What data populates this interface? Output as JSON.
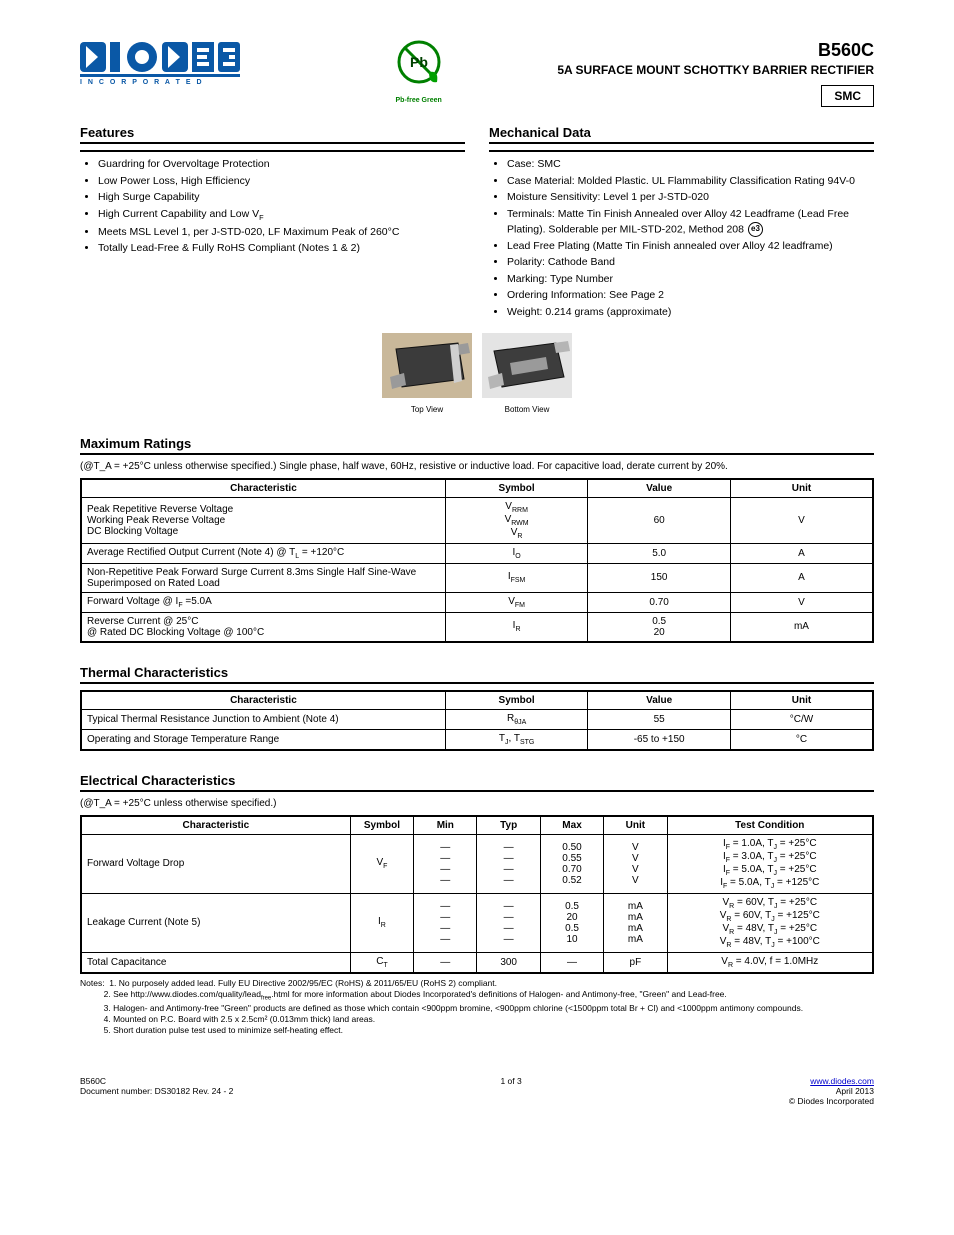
{
  "brand": {
    "name": "DIODES",
    "sub": "I N C O R P O R A T E D",
    "logo_fill": "#0a58a6",
    "logo_cut": "#a8cbe6"
  },
  "pbfree": {
    "caption": "Pb-free   Green"
  },
  "header": {
    "part": "B560C",
    "desc": "5A SURFACE MOUNT SCHOTTKY BARRIER RECTIFIER",
    "box": "SMC"
  },
  "features": {
    "title": "Features",
    "items": [
      "Guardring for Overvoltage Protection",
      "Low Power Loss, High Efficiency",
      "High Surge Capability",
      "High Current Capability and Low V_F",
      "Meets MSL Level 1, per J-STD-020, LF Maximum Peak of 260°C",
      "Totally Lead-Free & Fully RoHS Compliant (Notes 1 & 2)"
    ]
  },
  "mech": {
    "title": "Mechanical Data",
    "items": [
      "Case: SMC",
      "Case Material: Molded Plastic. UL Flammability Classification Rating 94V-0",
      "Moisture Sensitivity: Level 1 per J-STD-020",
      "Terminals: Matte Tin Finish Annealed over Alloy 42 Leadframe (Lead Free Plating). Solderable per MIL-STD-202, Method 208",
      "Lead Free Plating (Matte Tin Finish annealed over Alloy 42 leadframe)",
      "Polarity: Cathode Band",
      "Marking: Type Number",
      "Ordering Information: See Page 2",
      "Weight: 0.214 grams (approximate)"
    ],
    "e3_item_index": 3
  },
  "imgs": {
    "top_caption": "Top View",
    "bot_caption": "Bottom View"
  },
  "abs": {
    "title": "Maximum Ratings",
    "sub": "(@T_A = +25°C unless otherwise specified.)  Single phase, half wave, 60Hz, resistive or inductive load.  For capacitive load, derate current by 20%.",
    "cols": [
      "Characteristic",
      "Symbol",
      "Value",
      "Unit"
    ],
    "rows": [
      [
        "Peak Repetitive Reverse Voltage\nWorking Peak Reverse Voltage\nDC Blocking Voltage",
        "V_RRM\nV_RWM\nV_R",
        "60",
        "V"
      ],
      [
        "Average Rectified Output Current (Note 4)  @ T_L = +120°C",
        "I_O",
        "5.0",
        "A"
      ],
      [
        "Non-Repetitive Peak Forward Surge Current 8.3ms Single Half Sine-Wave Superimposed on Rated Load",
        "I_FSM",
        "150",
        "A"
      ],
      [
        "Forward Voltage   @ I_F =5.0A",
        "V_FM",
        "0.70",
        "V"
      ],
      [
        "Reverse Current  @ 25°C\n@ Rated DC Blocking Voltage  @ 100°C",
        "I_R",
        "0.5\n20",
        "mA"
      ]
    ]
  },
  "thermal": {
    "title": "Thermal Characteristics",
    "cols": [
      "Characteristic",
      "Symbol",
      "Value",
      "Unit"
    ],
    "rows": [
      [
        "Typical Thermal Resistance Junction to Ambient (Note 4)",
        "R_θJA",
        "55",
        "°C/W"
      ],
      [
        "Operating and Storage Temperature Range",
        "T_J, T_STG",
        "-65 to +150",
        "°C"
      ]
    ]
  },
  "elec": {
    "title": "Electrical Characteristics",
    "sub": "(@T_A = +25°C unless otherwise specified.)",
    "cols": [
      "Characteristic",
      "Symbol",
      "Min",
      "Typ",
      "Max",
      "Unit",
      "Test Condition"
    ],
    "rows": [
      [
        "Forward Voltage Drop",
        "V_F",
        "—\n—\n—\n—",
        "—\n—\n—\n—",
        "0.50\n0.55\n0.70\n0.52",
        "V\nV\nV\nV",
        "I_F = 1.0A, T_J = +25°C\nI_F = 3.0A, T_J = +25°C\nI_F = 5.0A, T_J = +25°C\nI_F = 5.0A, T_J = +125°C"
      ],
      [
        "Leakage Current (Note 5)",
        "I_R",
        "—\n—\n—\n—",
        "—\n—\n—\n—",
        "0.5\n20\n0.5\n10",
        "mA\nmA\nmA\nmA",
        "V_R = 60V, T_J  = +25°C\nV_R = 60V, T_J  = +125°C\nV_R = 48V, T_J  = +25°C\nV_R = 48V, T_J  = +100°C"
      ],
      [
        "Total Capacitance",
        "C_T",
        "—",
        "300",
        "—",
        "pF",
        "V_R = 4.0V, f = 1.0MHz"
      ]
    ]
  },
  "notes": [
    "1. No purposely added lead. Fully EU Directive 2002/95/EC (RoHS) & 2011/65/EU (RoHS 2) compliant.",
    "2. See http://www.diodes.com/quality/lead_free.html for more information about Diodes Incorporated's definitions of Halogen- and Antimony-free, \"Green\" and Lead-free.",
    "3. Halogen- and Antimony-free \"Green\" products are defined as those which contain <900ppm bromine, <900ppm chlorine (<1500ppm total Br + Cl) and <1000ppm antimony compounds.",
    "4. Mounted on P.C. Board with 2.5 x 2.5cm² (0.013mm thick) land areas.",
    "5. Short duration pulse test used to minimize self-heating effect."
  ],
  "footer": {
    "left_line1": "B560C",
    "left_line2": "Document number: DS30182 Rev. 24 - 2",
    "center": "1 of 3",
    "right_line1": "www.diodes.com",
    "right_line2": "April 2013\n© Diodes Incorporated"
  }
}
